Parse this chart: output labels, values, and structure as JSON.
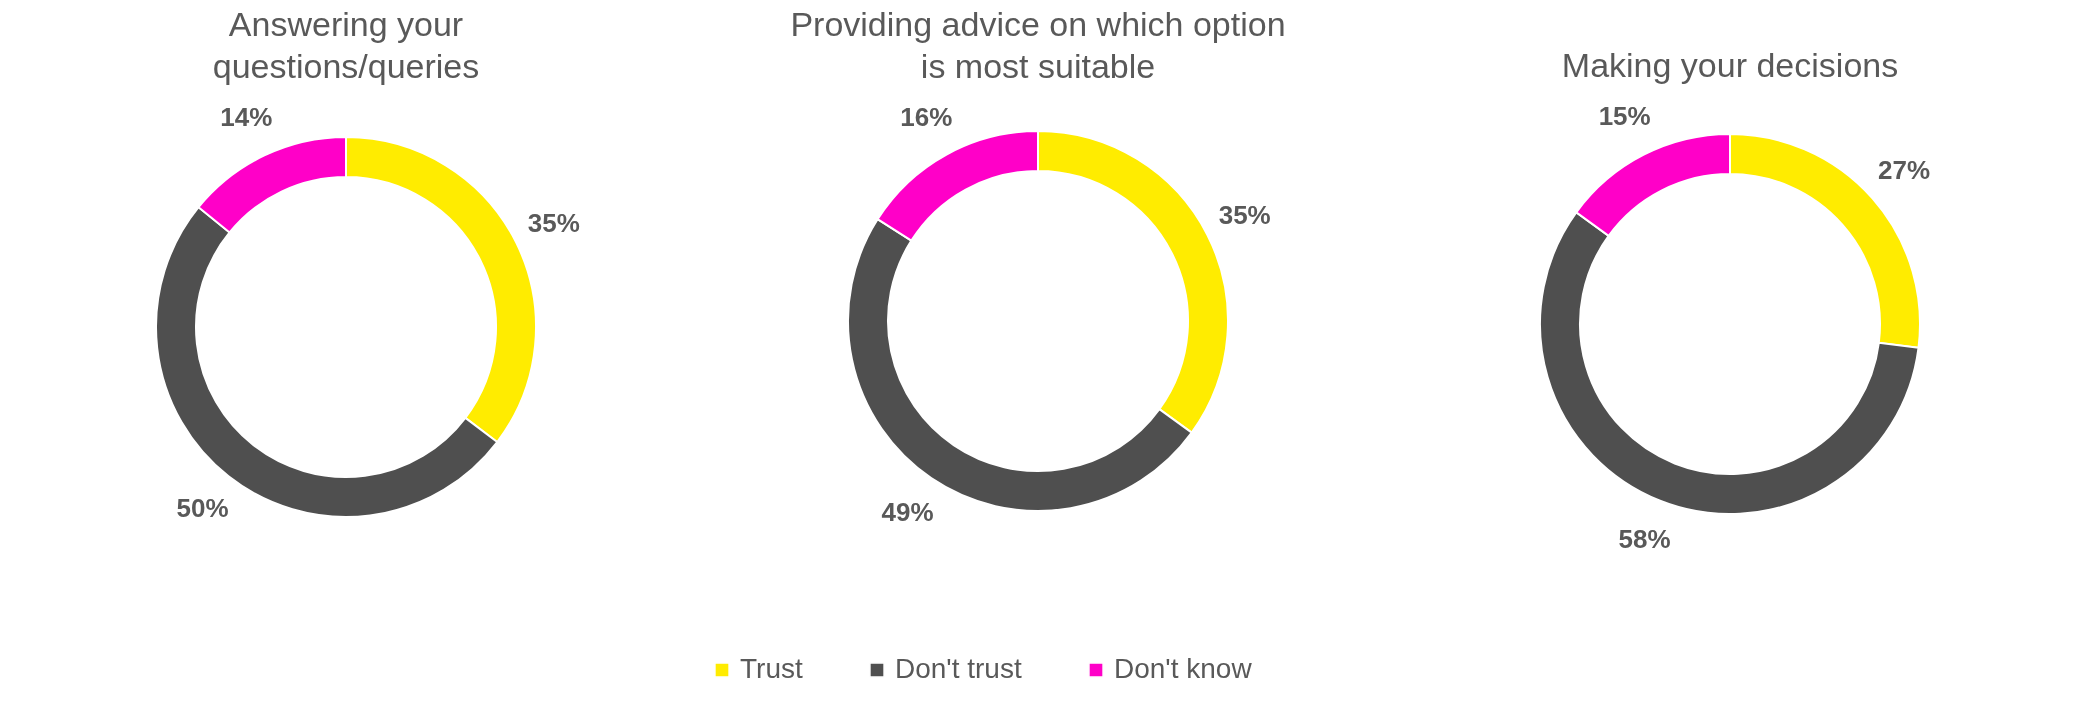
{
  "chart_data": [
    {
      "type": "donut",
      "title": "Answering your questions/queries",
      "categories": [
        null,
        null,
        null
      ],
      "values": [
        35,
        50,
        14
      ],
      "value_labels": [
        "35%",
        "50%",
        "14%"
      ],
      "colors": [
        "#ffec00",
        "#4f4f4f",
        "#ff00c8"
      ],
      "legend": false
    },
    {
      "type": "donut",
      "title": "Providing advice on which option is most suitable",
      "categories": [
        "Trust",
        "Don't trust",
        "Don't know"
      ],
      "values": [
        35,
        49,
        16
      ],
      "value_labels": [
        "35%",
        "49%",
        "16%"
      ],
      "colors": [
        "#ffec00",
        "#4f4f4f",
        "#ff00c8"
      ],
      "legend": "bottom"
    },
    {
      "type": "donut",
      "title": "Making your decisions",
      "categories": [
        null,
        null,
        null
      ],
      "values": [
        27,
        58,
        15
      ],
      "value_labels": [
        "27%",
        "58%",
        "15%"
      ],
      "colors": [
        "#ffec00",
        "#4f4f4f",
        "#ff00c8"
      ],
      "legend": false
    }
  ]
}
